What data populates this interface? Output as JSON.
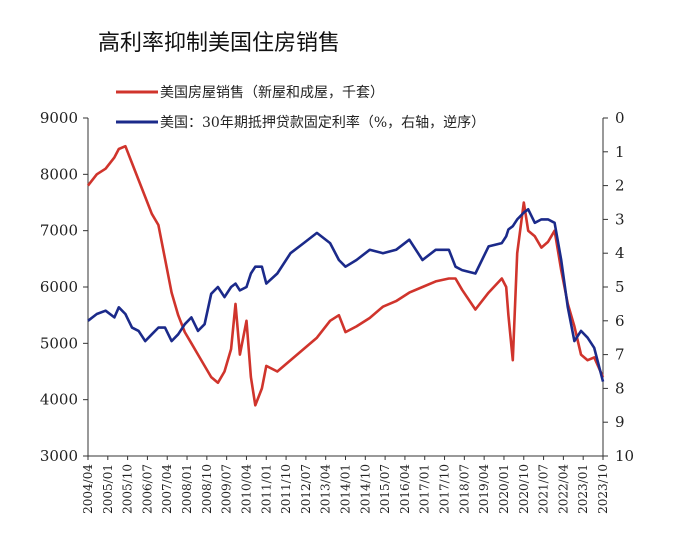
{
  "title": "高利率抑制美国住房销售",
  "colors": {
    "sales": "#d0342c",
    "rate": "#1b2a8a"
  },
  "chart_data": {
    "type": "line",
    "title": "高利率抑制美国住房销售",
    "legend_position": "top-left",
    "grid": false,
    "x_labels": [
      "2004/04",
      "2005/01",
      "2005/10",
      "2006/07",
      "2007/04",
      "2008/01",
      "2008/10",
      "2009/07",
      "2010/04",
      "2011/01",
      "2011/10",
      "2012/07",
      "2013/04",
      "2014/01",
      "2014/10",
      "2015/07",
      "2016/04",
      "2017/01",
      "2017/10",
      "2018/07",
      "2019/04",
      "2020/01",
      "2020/10",
      "2021/07",
      "2022/04",
      "2023/01",
      "2023/10"
    ],
    "y_left": {
      "ylim": [
        3000,
        9000
      ],
      "ticks": [
        "3000",
        "4000",
        "5000",
        "6000",
        "7000",
        "8000",
        "9000"
      ]
    },
    "y_right": {
      "ylim": [
        0,
        10
      ],
      "inverted": true,
      "ticks": [
        "0",
        "1",
        "2",
        "3",
        "4",
        "5",
        "6",
        "7",
        "8",
        "9",
        "10"
      ]
    },
    "series": [
      {
        "name": "美国房屋销售（新屋和成屋，千套）",
        "axis": "left",
        "x": [
          "2004/04",
          "2004/08",
          "2004/12",
          "2005/04",
          "2005/06",
          "2005/09",
          "2005/12",
          "2006/03",
          "2006/06",
          "2006/09",
          "2006/12",
          "2007/03",
          "2007/06",
          "2007/09",
          "2007/12",
          "2008/03",
          "2008/06",
          "2008/09",
          "2008/12",
          "2009/03",
          "2009/06",
          "2009/09",
          "2009/11",
          "2010/01",
          "2010/04",
          "2010/06",
          "2010/08",
          "2010/11",
          "2011/01",
          "2011/06",
          "2011/12",
          "2012/06",
          "2012/12",
          "2013/06",
          "2013/10",
          "2014/01",
          "2014/06",
          "2014/12",
          "2015/06",
          "2015/12",
          "2016/06",
          "2016/12",
          "2017/06",
          "2017/12",
          "2018/03",
          "2018/06",
          "2018/12",
          "2019/06",
          "2019/12",
          "2020/02",
          "2020/03",
          "2020/05",
          "2020/07",
          "2020/10",
          "2020/12",
          "2021/03",
          "2021/06",
          "2021/09",
          "2021/12",
          "2022/03",
          "2022/06",
          "2022/09",
          "2022/12",
          "2023/03",
          "2023/06",
          "2023/10"
        ],
        "values": [
          7800,
          8000,
          8100,
          8300,
          8450,
          8500,
          8200,
          7900,
          7600,
          7300,
          7100,
          6500,
          5900,
          5500,
          5200,
          5000,
          4800,
          4600,
          4400,
          4300,
          4500,
          4900,
          5700,
          4800,
          5400,
          4400,
          3900,
          4200,
          4600,
          4500,
          4700,
          4900,
          5100,
          5400,
          5500,
          5200,
          5300,
          5450,
          5650,
          5750,
          5900,
          6000,
          6100,
          6150,
          6150,
          5950,
          5600,
          5900,
          6150,
          6000,
          5500,
          4700,
          6600,
          7500,
          7000,
          6900,
          6700,
          6800,
          7000,
          6300,
          5700,
          5300,
          4800,
          4700,
          4750,
          4400
        ]
      },
      {
        "name": "美国：30年期抵押贷款固定利率（%，右轴，逆序）",
        "axis": "right",
        "x": [
          "2004/04",
          "2004/08",
          "2004/12",
          "2005/04",
          "2005/06",
          "2005/09",
          "2005/12",
          "2006/03",
          "2006/06",
          "2006/09",
          "2006/12",
          "2007/03",
          "2007/06",
          "2007/09",
          "2007/12",
          "2008/03",
          "2008/06",
          "2008/09",
          "2008/12",
          "2009/03",
          "2009/06",
          "2009/09",
          "2009/11",
          "2010/01",
          "2010/04",
          "2010/06",
          "2010/08",
          "2010/11",
          "2011/01",
          "2011/06",
          "2011/12",
          "2012/06",
          "2012/12",
          "2013/06",
          "2013/10",
          "2014/01",
          "2014/06",
          "2014/12",
          "2015/06",
          "2015/12",
          "2016/06",
          "2016/12",
          "2017/06",
          "2017/12",
          "2018/03",
          "2018/06",
          "2018/12",
          "2019/06",
          "2019/12",
          "2020/02",
          "2020/03",
          "2020/05",
          "2020/07",
          "2020/10",
          "2020/12",
          "2021/03",
          "2021/06",
          "2021/09",
          "2021/12",
          "2022/03",
          "2022/06",
          "2022/09",
          "2022/12",
          "2023/03",
          "2023/06",
          "2023/10"
        ],
        "values": [
          6.0,
          5.8,
          5.7,
          5.9,
          5.6,
          5.8,
          6.2,
          6.3,
          6.6,
          6.4,
          6.2,
          6.2,
          6.6,
          6.4,
          6.1,
          5.9,
          6.3,
          6.1,
          5.2,
          5.0,
          5.3,
          5.0,
          4.9,
          5.1,
          5.0,
          4.6,
          4.4,
          4.4,
          4.9,
          4.6,
          4.0,
          3.7,
          3.4,
          3.7,
          4.2,
          4.4,
          4.2,
          3.9,
          4.0,
          3.9,
          3.6,
          4.2,
          3.9,
          3.9,
          4.4,
          4.5,
          4.6,
          3.8,
          3.7,
          3.5,
          3.3,
          3.2,
          3.0,
          2.8,
          2.7,
          3.1,
          3.0,
          3.0,
          3.1,
          4.2,
          5.6,
          6.6,
          6.3,
          6.5,
          6.8,
          7.8
        ]
      }
    ]
  }
}
